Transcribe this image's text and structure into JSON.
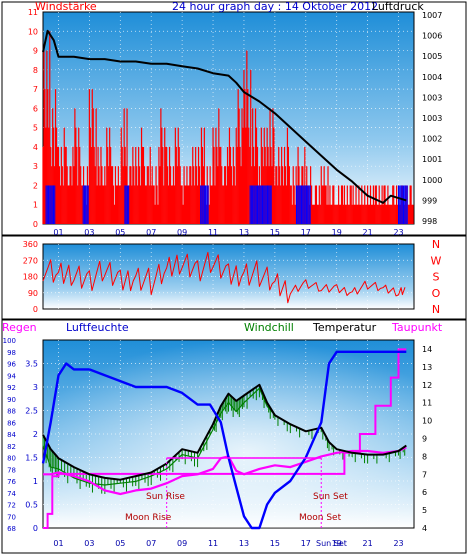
{
  "chart_data": [
    {
      "type": "bar",
      "title": "24 hour graph day : 14 Oktober 2012",
      "left_label": "Windstärke",
      "right_label": "Luftdruck",
      "x_ticks": [
        "01",
        "03",
        "05",
        "07",
        "09",
        "11",
        "13",
        "15",
        "17",
        "19",
        "21",
        "23"
      ],
      "ylim_left": [
        0,
        11
      ],
      "y_ticks_left": [
        "0",
        "1",
        "2",
        "3",
        "4",
        "5",
        "6",
        "7",
        "8",
        "9",
        "10",
        "11"
      ],
      "ylim_right": [
        998,
        1007
      ],
      "y_ticks_right": [
        "998",
        "999",
        "1000",
        "1001",
        "1002",
        "1003",
        "1003",
        "1004",
        "1005",
        "1006",
        "1007"
      ],
      "series": [
        {
          "name": "Windstärke",
          "color": "#ff0000",
          "x": [
            0.0,
            0.5,
            1.0,
            1.5,
            2.0,
            2.5,
            3.0,
            3.5,
            4.0,
            4.5,
            5.0,
            5.5,
            6.0,
            6.5,
            7.0,
            7.5,
            8.0,
            8.5,
            9.0,
            9.5,
            10.0,
            10.5,
            11.0,
            11.5,
            12.0,
            12.5,
            13.0,
            13.5,
            14.0,
            14.5,
            15.0,
            15.5,
            16.0,
            16.5,
            17.0,
            17.5,
            18.0,
            18.5,
            19.0,
            19.5,
            20.0,
            20.5,
            21.0,
            21.5,
            22.0,
            22.5,
            23.0,
            23.5
          ],
          "values": [
            10,
            7,
            5,
            4,
            6,
            3,
            7,
            4,
            5,
            3,
            6,
            4,
            5,
            4,
            3,
            6,
            4,
            5,
            3,
            4,
            5,
            3,
            6,
            4,
            5,
            7,
            9,
            6,
            5,
            6,
            4,
            5,
            3,
            4,
            3,
            2,
            3,
            2,
            2,
            2,
            2,
            2,
            2,
            2,
            2,
            2,
            2,
            2
          ]
        },
        {
          "name": "Luftdruck",
          "color": "#000000",
          "x": [
            0.0,
            0.3,
            0.7,
            1.0,
            2.0,
            3.0,
            4.0,
            5.0,
            6.0,
            7.0,
            8.0,
            9.0,
            10.0,
            11.0,
            12.0,
            12.5,
            13.0,
            14.0,
            15.0,
            16.0,
            17.0,
            18.0,
            19.0,
            20.0,
            21.0,
            22.0,
            22.5,
            23.0,
            23.5
          ],
          "values": [
            1005.3,
            1006.2,
            1005.8,
            1005.1,
            1005.1,
            1005.0,
            1005.0,
            1004.9,
            1004.9,
            1004.8,
            1004.8,
            1004.7,
            1004.6,
            1004.4,
            1004.3,
            1004.0,
            1003.6,
            1003.2,
            1002.7,
            1002.1,
            1001.5,
            1000.9,
            1000.3,
            999.8,
            999.2,
            998.9,
            999.2,
            999.1,
            999.0
          ]
        }
      ]
    },
    {
      "type": "line",
      "ylim": [
        0,
        360
      ],
      "y_ticks": [
        "0",
        "90",
        "180",
        "270",
        "360"
      ],
      "direction_labels": [
        "N",
        "W",
        "S",
        "O",
        "N"
      ],
      "series": [
        {
          "name": "Windrichtung",
          "color": "#ff0000",
          "x": [
            0,
            1,
            2,
            3,
            4,
            5,
            6,
            7,
            8,
            9,
            10,
            11,
            12,
            13,
            14,
            15,
            16,
            17,
            18,
            19,
            20,
            21,
            22,
            23,
            23.5
          ],
          "values": [
            225,
            180,
            205,
            165,
            210,
            145,
            185,
            150,
            205,
            275,
            220,
            255,
            180,
            205,
            195,
            130,
            100,
            145,
            110,
            110,
            95,
            135,
            110,
            95,
            115
          ]
        }
      ]
    },
    {
      "type": "line",
      "left_labels": [
        "Regen",
        "Luftfeuchte"
      ],
      "right_labels": [
        "Windchill",
        "Temperatur",
        "Taupunkt"
      ],
      "ylim_left_outer": [
        68,
        100
      ],
      "y_ticks_left_outer": [
        "68",
        "70",
        "72",
        "74",
        "76",
        "78",
        "80",
        "82",
        "84",
        "86",
        "88",
        "90",
        "92",
        "94",
        "96",
        "98",
        "100"
      ],
      "ylim_left_inner": [
        0,
        4
      ],
      "y_ticks_left_inner": [
        "0",
        "0.5",
        "1",
        "1.5",
        "2",
        "2.5",
        "3",
        "3.5"
      ],
      "ylim_right": [
        4,
        14.5
      ],
      "y_ticks_right": [
        "4",
        "5",
        "6",
        "7",
        "8",
        "9",
        "10",
        "11",
        "12",
        "13",
        "14"
      ],
      "x_ticks": [
        "01",
        "03",
        "05",
        "07",
        "09",
        "11",
        "13",
        "15",
        "17",
        "19",
        "21",
        "23"
      ],
      "annotations": {
        "sun_rise": "Sun Rise",
        "moon_rise": "Moon Rise",
        "sun_set": "Sun Set",
        "moon_set": "Moon Set",
        "sun_set_axis": "Sun Set"
      },
      "series": [
        {
          "name": "Regen",
          "color": "#ff00ff",
          "x": [
            0.0,
            0.3,
            0.6,
            1.0,
            1.5,
            2.0,
            4.0,
            6.0,
            8.0,
            10.0,
            12.0,
            13.0,
            16.0,
            18.0,
            19.0,
            19.5,
            20.5,
            21.5,
            22.5,
            23.0,
            23.5
          ],
          "values": [
            0.0,
            0.3,
            1.1,
            1.15,
            1.15,
            1.15,
            1.15,
            1.15,
            1.15,
            1.15,
            1.15,
            1.15,
            1.15,
            1.15,
            1.15,
            1.6,
            2.0,
            2.6,
            3.2,
            3.8,
            3.8
          ]
        },
        {
          "name": "Luftfeuchte",
          "color": "#0000ff",
          "x": [
            0.0,
            0.5,
            1.0,
            1.5,
            2.0,
            3.0,
            4.0,
            5.0,
            6.0,
            7.0,
            8.0,
            9.0,
            10.0,
            10.8,
            11.5,
            12.0,
            12.5,
            13.0,
            13.5,
            14.0,
            14.5,
            15.0,
            16.0,
            17.0,
            18.0,
            18.5,
            19.0,
            20.0,
            23.5
          ],
          "values": [
            79,
            86,
            94,
            96,
            95,
            95,
            94,
            93,
            92,
            92,
            92,
            91,
            89,
            89,
            86,
            80,
            75,
            70,
            68,
            68,
            72,
            74,
            76,
            80,
            86,
            96,
            98,
            98,
            98
          ]
        },
        {
          "name": "Temperatur",
          "color": "#000000",
          "x": [
            0.0,
            0.5,
            1.0,
            2.0,
            3.0,
            4.0,
            5.0,
            6.0,
            7.0,
            8.0,
            9.0,
            10.0,
            11.0,
            11.5,
            12.0,
            12.5,
            13.0,
            14.0,
            14.5,
            15.0,
            16.0,
            17.0,
            18.0,
            18.5,
            19.0,
            20.0,
            21.0,
            22.0,
            23.0,
            23.5
          ],
          "values": [
            9.2,
            8.4,
            7.9,
            7.4,
            7.0,
            6.8,
            6.7,
            6.9,
            7.1,
            7.6,
            8.4,
            8.2,
            9.8,
            10.8,
            11.5,
            11.1,
            11.4,
            12.0,
            11.0,
            10.3,
            9.8,
            9.4,
            9.6,
            8.8,
            8.4,
            8.2,
            8.1,
            8.1,
            8.3,
            8.6
          ]
        },
        {
          "name": "Windchill",
          "color": "#008000",
          "x": [
            0.0,
            0.5,
            1.0,
            2.0,
            3.0,
            4.0,
            5.0,
            6.0,
            7.0,
            8.0,
            9.0,
            10.0,
            11.0,
            11.5,
            12.0,
            12.5,
            13.0,
            14.0,
            14.5,
            15.0,
            16.0,
            17.0,
            18.0,
            18.5,
            19.0,
            20.0,
            21.0,
            22.0,
            23.0,
            23.5
          ],
          "values": [
            8.6,
            7.4,
            7.3,
            6.8,
            6.5,
            6.4,
            6.5,
            6.6,
            6.9,
            7.3,
            8.1,
            7.9,
            9.5,
            10.4,
            11.0,
            10.5,
            11.0,
            11.8,
            10.8,
            10.3,
            9.8,
            9.4,
            9.6,
            8.8,
            8.4,
            8.2,
            8.1,
            8.1,
            8.3,
            8.6
          ]
        },
        {
          "name": "Taupunkt",
          "color": "#ff00ff",
          "x": [
            0.0,
            0.5,
            1.0,
            2.0,
            3.0,
            4.0,
            5.0,
            6.0,
            7.0,
            8.0,
            9.0,
            10.0,
            11.0,
            11.5,
            12.0,
            12.5,
            13.0,
            14.0,
            15.0,
            16.0,
            17.0,
            18.0,
            19.0,
            20.0,
            21.0,
            22.0,
            23.0,
            23.5
          ],
          "values": [
            7.0,
            7.0,
            7.1,
            6.9,
            6.6,
            6.1,
            5.9,
            6.1,
            6.2,
            6.5,
            6.9,
            7.0,
            7.3,
            7.9,
            8.0,
            7.2,
            7.0,
            7.3,
            7.5,
            7.4,
            7.7,
            8.0,
            8.2,
            8.3,
            8.3,
            8.2,
            8.3,
            8.5
          ]
        }
      ]
    }
  ]
}
